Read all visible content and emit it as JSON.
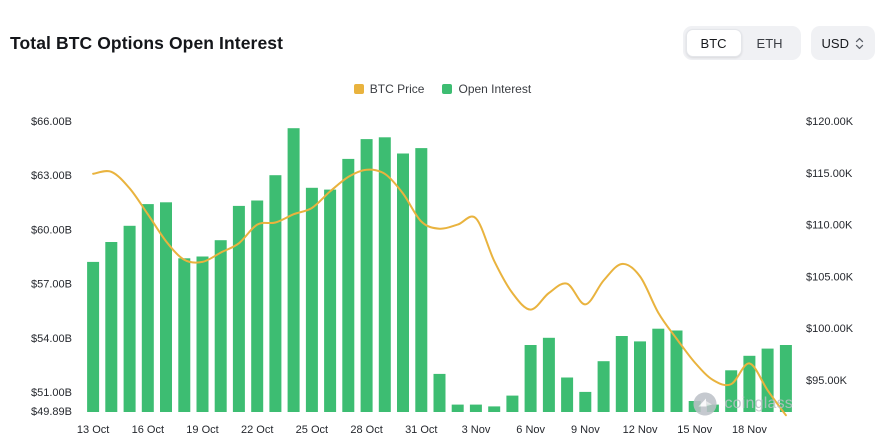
{
  "header": {
    "title": "Total BTC Options Open Interest",
    "coin_toggle": [
      "BTC",
      "ETH"
    ],
    "currency": "USD"
  },
  "legend": {
    "price_label": "BTC Price",
    "oi_label": "Open Interest"
  },
  "watermark": {
    "label": "coinglass"
  },
  "colors": {
    "bar": "#3dbd72",
    "line": "#e9b33e",
    "axis_text": "#25282e",
    "watermark": "#bcc0c7"
  },
  "chart_data": {
    "type": "bar",
    "title": "Total BTC Options Open Interest",
    "grid": false,
    "legend_position": "top",
    "x_tick_every": 3,
    "x": [
      "13 Oct",
      "14 Oct",
      "15 Oct",
      "16 Oct",
      "17 Oct",
      "18 Oct",
      "19 Oct",
      "20 Oct",
      "21 Oct",
      "22 Oct",
      "23 Oct",
      "24 Oct",
      "25 Oct",
      "26 Oct",
      "27 Oct",
      "28 Oct",
      "29 Oct",
      "30 Oct",
      "31 Oct",
      "1 Nov",
      "2 Nov",
      "3 Nov",
      "4 Nov",
      "5 Nov",
      "6 Nov",
      "7 Nov",
      "8 Nov",
      "9 Nov",
      "10 Nov",
      "11 Nov",
      "12 Nov",
      "13 Nov",
      "14 Nov",
      "15 Nov",
      "16 Nov",
      "17 Nov",
      "18 Nov",
      "19 Nov",
      "20 Nov"
    ],
    "series": [
      {
        "name": "Open Interest",
        "type": "bar",
        "axis": "left",
        "unit": "billion USD",
        "values": [
          58.2,
          59.3,
          60.2,
          61.4,
          61.5,
          58.4,
          58.5,
          59.4,
          61.3,
          61.6,
          63.0,
          65.6,
          62.3,
          62.2,
          63.9,
          65.0,
          65.1,
          64.2,
          64.5,
          52.0,
          50.3,
          50.3,
          50.2,
          50.8,
          53.6,
          54.0,
          51.8,
          51.0,
          52.7,
          54.1,
          53.8,
          54.5,
          54.4,
          50.5,
          50.3,
          52.2,
          53.0,
          53.4,
          53.6
        ]
      },
      {
        "name": "BTC Price",
        "type": "line",
        "axis": "right",
        "unit": "thousand USD",
        "values": [
          114.9,
          115.1,
          113.5,
          111.0,
          108.4,
          106.6,
          106.4,
          107.3,
          108.2,
          110.0,
          110.2,
          111.0,
          111.6,
          113.2,
          114.6,
          115.3,
          114.9,
          113.0,
          110.3,
          109.6,
          110.0,
          110.6,
          106.5,
          103.4,
          101.8,
          103.4,
          104.3,
          102.3,
          104.6,
          106.2,
          105.0,
          101.5,
          99.0,
          96.7,
          95.0,
          94.6,
          96.6,
          94.0,
          91.6
        ]
      }
    ],
    "left_axis": {
      "tick_values": [
        66,
        63,
        60,
        57,
        54,
        51
      ],
      "tick_labels": [
        "$66.00B",
        "$63.00B",
        "$60.00B",
        "$57.00B",
        "$54.00B",
        "$51.00B"
      ],
      "baseline_value": 49.89,
      "baseline_label": "$49.89B"
    },
    "right_axis": {
      "tick_values": [
        120,
        115,
        110,
        105,
        100,
        95
      ],
      "tick_labels": [
        "$120.00K",
        "$115.00K",
        "$110.00K",
        "$105.00K",
        "$100.00K",
        "$95.00K"
      ]
    }
  }
}
